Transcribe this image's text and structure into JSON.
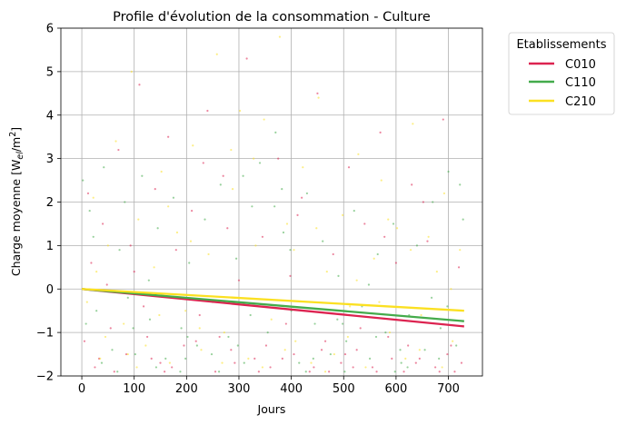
{
  "chart_data": {
    "type": "scatter",
    "title": "Profile d'évolution de la consommation - Culture",
    "xlabel": "Jours",
    "ylabel_main": "Charge moyenne [W",
    "ylabel_sub": "el",
    "ylabel_mid": "/m",
    "ylabel_sup": "2",
    "ylabel_end": "]",
    "xlim": [
      -40,
      765
    ],
    "ylim": [
      -2,
      6
    ],
    "xticks": [
      0,
      100,
      200,
      300,
      400,
      500,
      600,
      700
    ],
    "yticks": [
      -2,
      -1,
      0,
      1,
      2,
      3,
      4,
      5,
      6
    ],
    "xtick_labels": [
      "0",
      "100",
      "200",
      "300",
      "400",
      "500",
      "600",
      "700"
    ],
    "ytick_labels": [
      "−2",
      "−1",
      "0",
      "1",
      "2",
      "3",
      "4",
      "5",
      "6"
    ],
    "grid": true,
    "legend_position": "outside-top-right",
    "legend_title": "Etablissements",
    "series": [
      {
        "name": "C010",
        "color": "#dc2350",
        "trend": {
          "x": [
            0,
            730
          ],
          "y": [
            0,
            -0.86
          ]
        },
        "points": [
          [
            5,
            -1.2
          ],
          [
            18,
            0.6
          ],
          [
            25,
            -1.8
          ],
          [
            40,
            1.5
          ],
          [
            55,
            -0.9
          ],
          [
            70,
            3.2
          ],
          [
            85,
            -1.5
          ],
          [
            100,
            0.4
          ],
          [
            110,
            4.7
          ],
          [
            125,
            -1.1
          ],
          [
            140,
            2.3
          ],
          [
            150,
            -1.7
          ],
          [
            165,
            3.5
          ],
          [
            180,
            0.9
          ],
          [
            195,
            -1.3
          ],
          [
            210,
            1.8
          ],
          [
            225,
            -0.6
          ],
          [
            240,
            4.1
          ],
          [
            255,
            -1.9
          ],
          [
            270,
            2.6
          ],
          [
            285,
            -1.4
          ],
          [
            300,
            0.2
          ],
          [
            315,
            5.3
          ],
          [
            330,
            -1.6
          ],
          [
            345,
            1.2
          ],
          [
            360,
            -1.8
          ],
          [
            375,
            3.0
          ],
          [
            390,
            -0.8
          ],
          [
            405,
            -1.5
          ],
          [
            420,
            2.1
          ],
          [
            435,
            -1.9
          ],
          [
            450,
            4.5
          ],
          [
            465,
            -1.2
          ],
          [
            480,
            0.8
          ],
          [
            495,
            -1.7
          ],
          [
            510,
            2.8
          ],
          [
            525,
            -1.4
          ],
          [
            540,
            1.5
          ],
          [
            555,
            -1.8
          ],
          [
            570,
            3.6
          ],
          [
            585,
            -1.1
          ],
          [
            600,
            0.6
          ],
          [
            615,
            -1.9
          ],
          [
            630,
            2.4
          ],
          [
            645,
            -1.6
          ],
          [
            660,
            1.1
          ],
          [
            675,
            -1.8
          ],
          [
            690,
            3.9
          ],
          [
            705,
            -1.3
          ],
          [
            720,
            0.5
          ],
          [
            12,
            2.2
          ],
          [
            62,
            -1.9
          ],
          [
            118,
            -0.4
          ],
          [
            172,
            -1.8
          ],
          [
            232,
            2.9
          ],
          [
            292,
            -1.7
          ],
          [
            352,
            -1.3
          ],
          [
            412,
            1.7
          ],
          [
            472,
            -1.9
          ],
          [
            532,
            -0.9
          ],
          [
            592,
            -1.6
          ],
          [
            652,
            2.0
          ],
          [
            712,
            -1.9
          ],
          [
            33,
            -1.6
          ],
          [
            93,
            1.0
          ],
          [
            158,
            -1.9
          ],
          [
            218,
            -1.2
          ],
          [
            278,
            1.4
          ],
          [
            338,
            -1.9
          ],
          [
            398,
            0.3
          ],
          [
            458,
            -1.4
          ],
          [
            518,
            -1.8
          ],
          [
            578,
            1.2
          ],
          [
            638,
            -1.7
          ],
          [
            698,
            -1.5
          ],
          [
            48,
            0.1
          ],
          [
            133,
            -1.6
          ],
          [
            263,
            -1.1
          ],
          [
            383,
            -1.6
          ],
          [
            443,
            -1.8
          ],
          [
            503,
            -1.5
          ],
          [
            563,
            -1.9
          ],
          [
            623,
            -1.3
          ],
          [
            683,
            -1.9
          ],
          [
            725,
            -1.7
          ]
        ]
      },
      {
        "name": "C110",
        "color": "#44ab4b",
        "trend": {
          "x": [
            0,
            730
          ],
          "y": [
            0,
            -0.74
          ]
        },
        "points": [
          [
            2,
            2.5
          ],
          [
            15,
            1.8
          ],
          [
            28,
            -0.5
          ],
          [
            42,
            2.8
          ],
          [
            58,
            -1.4
          ],
          [
            72,
            0.9
          ],
          [
            88,
            -0.2
          ],
          [
            102,
            -1.5
          ],
          [
            115,
            2.6
          ],
          [
            130,
            -0.7
          ],
          [
            145,
            1.4
          ],
          [
            160,
            -1.6
          ],
          [
            175,
            2.1
          ],
          [
            190,
            -0.9
          ],
          [
            205,
            0.6
          ],
          [
            220,
            -1.3
          ],
          [
            235,
            1.6
          ],
          [
            250,
            -0.3
          ],
          [
            265,
            2.4
          ],
          [
            280,
            -1.1
          ],
          [
            295,
            0.7
          ],
          [
            310,
            -1.7
          ],
          [
            325,
            1.9
          ],
          [
            340,
            2.9
          ],
          [
            355,
            -1.0
          ],
          [
            370,
            3.6
          ],
          [
            385,
            1.3
          ],
          [
            400,
            -0.5
          ],
          [
            415,
            -1.7
          ],
          [
            430,
            2.2
          ],
          [
            445,
            -0.8
          ],
          [
            460,
            1.1
          ],
          [
            475,
            -1.5
          ],
          [
            490,
            0.3
          ],
          [
            505,
            -1.2
          ],
          [
            520,
            1.8
          ],
          [
            535,
            -0.4
          ],
          [
            550,
            -1.6
          ],
          [
            565,
            0.8
          ],
          [
            580,
            -1.0
          ],
          [
            595,
            1.5
          ],
          [
            610,
            -1.7
          ],
          [
            625,
            -0.6
          ],
          [
            640,
            1.0
          ],
          [
            655,
            -1.4
          ],
          [
            670,
            2.0
          ],
          [
            685,
            -0.9
          ],
          [
            700,
            2.7
          ],
          [
            715,
            -1.3
          ],
          [
            728,
            1.6
          ],
          [
            8,
            -0.8
          ],
          [
            68,
            -1.9
          ],
          [
            128,
            0.2
          ],
          [
            188,
            -1.9
          ],
          [
            248,
            -1.5
          ],
          [
            308,
            2.6
          ],
          [
            368,
            1.9
          ],
          [
            428,
            -1.9
          ],
          [
            488,
            -0.7
          ],
          [
            548,
            0.1
          ],
          [
            608,
            -1.4
          ],
          [
            668,
            -0.2
          ],
          [
            722,
            2.4
          ],
          [
            22,
            1.2
          ],
          [
            82,
            2.0
          ],
          [
            142,
            -1.8
          ],
          [
            202,
            -1.1
          ],
          [
            262,
            -1.9
          ],
          [
            322,
            -0.6
          ],
          [
            382,
            2.3
          ],
          [
            442,
            -1.6
          ],
          [
            502,
            -1.9
          ],
          [
            562,
            -1.1
          ],
          [
            622,
            -1.8
          ],
          [
            682,
            -1.6
          ],
          [
            38,
            -1.7
          ],
          [
            98,
            -0.9
          ],
          [
            198,
            -1.6
          ],
          [
            298,
            -1.3
          ],
          [
            398,
            0.9
          ],
          [
            498,
            -0.8
          ],
          [
            598,
            -1.9
          ],
          [
            698,
            -0.4
          ]
        ]
      },
      {
        "name": "C210",
        "color": "#fbe022",
        "trend": {
          "x": [
            0,
            730
          ],
          "y": [
            0,
            -0.5
          ]
        },
        "points": [
          [
            10,
            -0.3
          ],
          [
            22,
            2.1
          ],
          [
            35,
            -1.6
          ],
          [
            50,
            1.0
          ],
          [
            65,
            3.4
          ],
          [
            80,
            -0.8
          ],
          [
            95,
            5.0
          ],
          [
            108,
            1.6
          ],
          [
            122,
            -1.3
          ],
          [
            138,
            0.5
          ],
          [
            152,
            2.7
          ],
          [
            168,
            -1.7
          ],
          [
            182,
            1.3
          ],
          [
            198,
            -0.5
          ],
          [
            212,
            3.3
          ],
          [
            228,
            -1.4
          ],
          [
            242,
            0.8
          ],
          [
            258,
            5.4
          ],
          [
            272,
            -1.0
          ],
          [
            288,
            2.3
          ],
          [
            302,
            4.1
          ],
          [
            318,
            -1.6
          ],
          [
            332,
            1.0
          ],
          [
            348,
            3.9
          ],
          [
            362,
            -0.7
          ],
          [
            378,
            5.8
          ],
          [
            392,
            1.5
          ],
          [
            408,
            -1.2
          ],
          [
            422,
            2.8
          ],
          [
            438,
            -1.7
          ],
          [
            452,
            4.4
          ],
          [
            468,
            0.4
          ],
          [
            482,
            -1.5
          ],
          [
            498,
            1.7
          ],
          [
            512,
            -0.4
          ],
          [
            528,
            3.1
          ],
          [
            542,
            -1.8
          ],
          [
            558,
            0.7
          ],
          [
            572,
            2.5
          ],
          [
            588,
            -1.0
          ],
          [
            602,
            1.4
          ],
          [
            618,
            -1.6
          ],
          [
            632,
            3.8
          ],
          [
            648,
            -0.6
          ],
          [
            662,
            1.2
          ],
          [
            678,
            0.4
          ],
          [
            692,
            2.2
          ],
          [
            708,
            -1.2
          ],
          [
            722,
            0.9
          ],
          [
            45,
            -1.1
          ],
          [
            105,
            -1.8
          ],
          [
            165,
            1.9
          ],
          [
            225,
            -0.9
          ],
          [
            285,
            3.2
          ],
          [
            345,
            -1.8
          ],
          [
            405,
            0.9
          ],
          [
            465,
            -1.9
          ],
          [
            525,
            0.2
          ],
          [
            585,
            1.6
          ],
          [
            645,
            -1.4
          ],
          [
            705,
            0.0
          ],
          [
            28,
            0.4
          ],
          [
            88,
            -1.5
          ],
          [
            148,
            -0.6
          ],
          [
            208,
            1.1
          ],
          [
            268,
            -1.7
          ],
          [
            328,
            3.0
          ],
          [
            388,
            -1.4
          ],
          [
            448,
            1.4
          ],
          [
            508,
            -1.1
          ],
          [
            568,
            -0.3
          ],
          [
            628,
            0.9
          ],
          [
            688,
            -1.8
          ]
        ]
      }
    ]
  }
}
